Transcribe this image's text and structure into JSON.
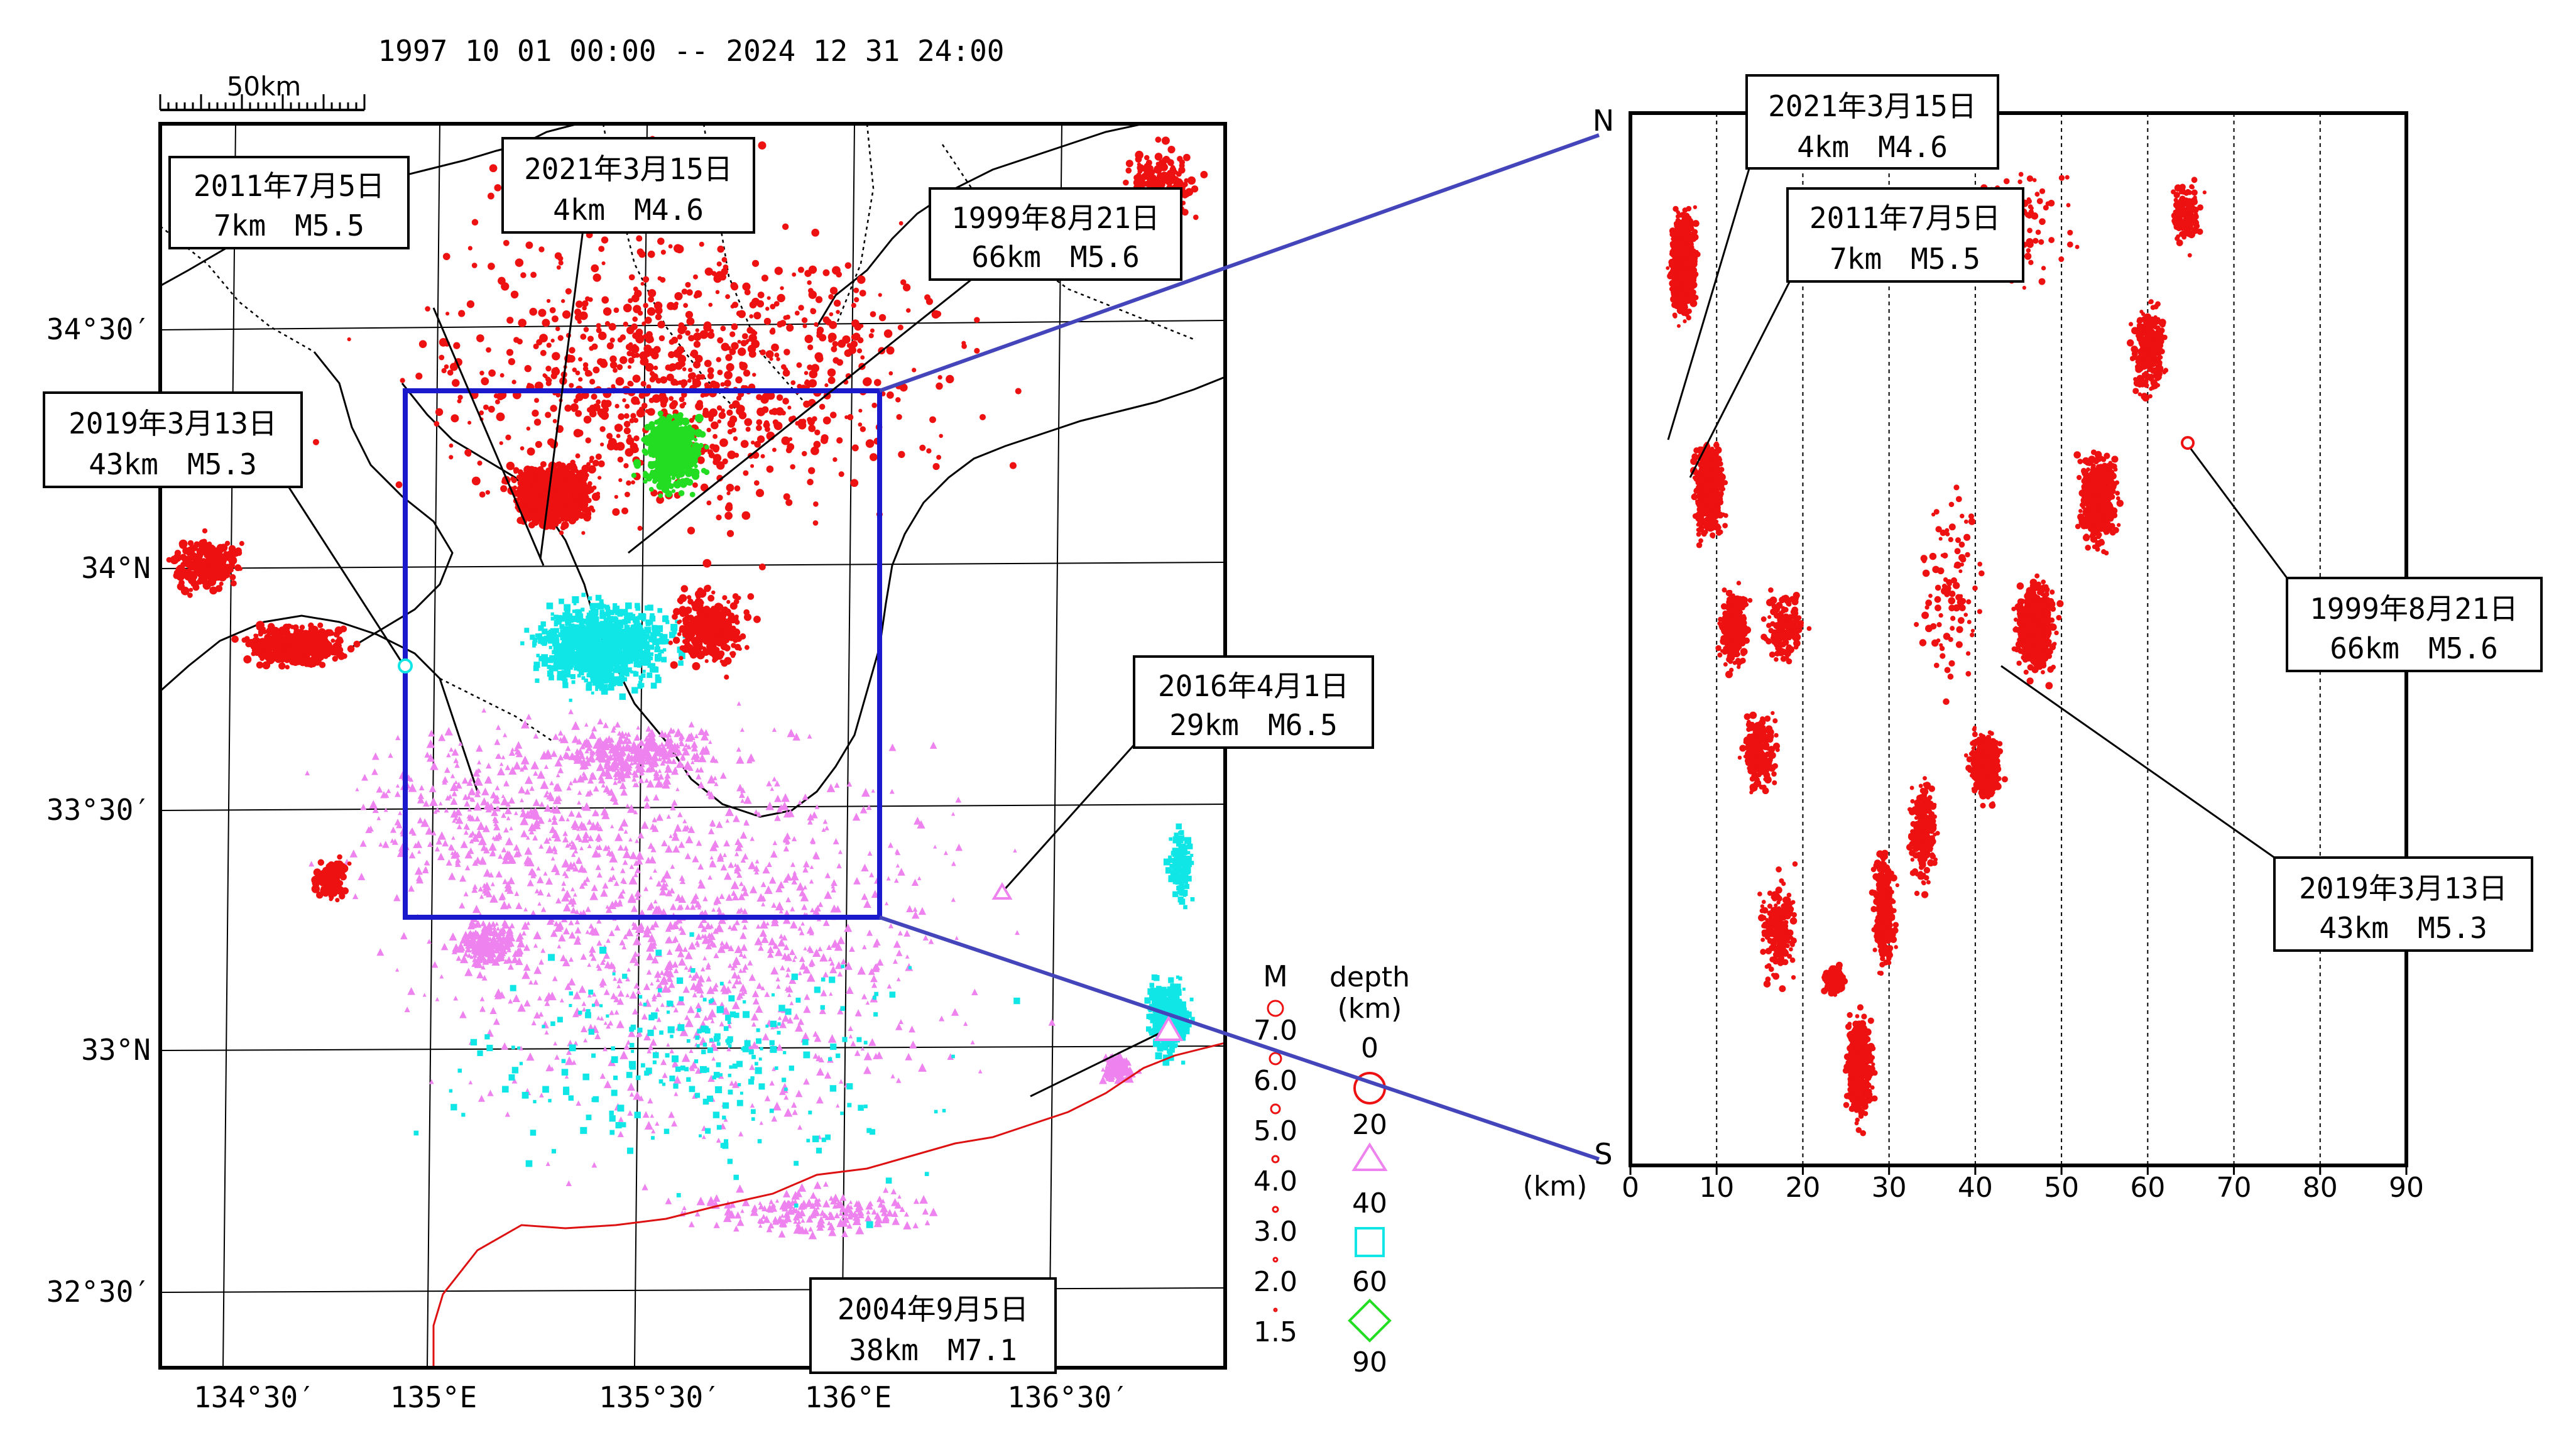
{
  "period": "1997 10 01 00:00 -- 2024 12 31 24:00",
  "scale_label": "50km",
  "colors": {
    "depth_0_20": "#ee1111",
    "depth_20_40": "#ee82ee",
    "depth_40_60": "#11e6e6",
    "depth_60_90": "#22dd22",
    "frame": "#000000",
    "selection_box": "#1a1acc",
    "trench_line": "#dd1111",
    "connector": "#4444bb"
  },
  "map": {
    "lat_labels": [
      "34°30′",
      "34°N",
      "33°30′",
      "33°N",
      "32°30′"
    ],
    "lon_labels": [
      "134°30′",
      "135°E",
      "135°30′",
      "136°E",
      "136°30′"
    ],
    "annotations": [
      {
        "date": "2011年7月5日",
        "info": "7km　M5.5"
      },
      {
        "date": "2021年3月15日",
        "info": "4km　M4.6"
      },
      {
        "date": "1999年8月21日",
        "info": "66km　M5.6"
      },
      {
        "date": "2019年3月13日",
        "info": "43km　M5.3"
      },
      {
        "date": "2016年4月1日",
        "info": "29km　M6.5"
      },
      {
        "date": "2004年9月5日",
        "info": "38km　M7.1"
      }
    ]
  },
  "legend": {
    "m_title": "M",
    "magnitudes": [
      "7.0",
      "6.0",
      "5.0",
      "4.0",
      "3.0",
      "2.0",
      "1.5"
    ],
    "depth_title": "depth",
    "depth_unit": "(km)",
    "depths": [
      "0",
      "20",
      "40",
      "60",
      "90"
    ]
  },
  "section": {
    "north_label": "N",
    "south_label": "S",
    "axis_unit": "(km)",
    "x_ticks": [
      "0",
      "10",
      "20",
      "30",
      "40",
      "50",
      "60",
      "70",
      "80",
      "90"
    ],
    "annotations": [
      {
        "date": "2021年3月15日",
        "info": "4km　M4.6"
      },
      {
        "date": "2011年7月5日",
        "info": "7km　M5.5"
      },
      {
        "date": "1999年8月21日",
        "info": "66km　M5.6"
      },
      {
        "date": "2019年3月13日",
        "info": "43km　M5.3"
      }
    ]
  }
}
